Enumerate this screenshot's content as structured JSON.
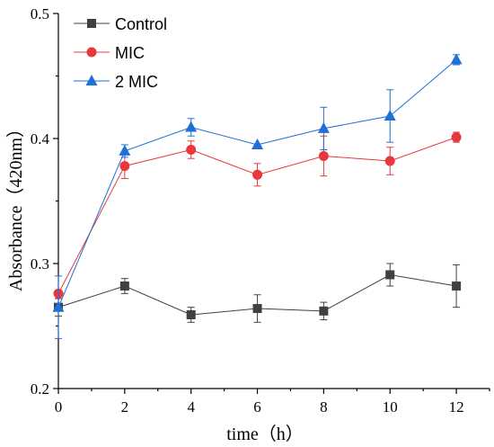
{
  "chart_data": {
    "type": "line",
    "xlabel": "time（h）",
    "ylabel": "Absorbance（420nm）",
    "xlim": [
      0,
      13
    ],
    "ylim": [
      0.2,
      0.5
    ],
    "xticks": [
      "0",
      "2",
      "4",
      "6",
      "8",
      "10",
      "12"
    ],
    "yticks": [
      "0.2",
      "0.3",
      "0.4",
      "0.5"
    ],
    "grid": false,
    "legend_position": "top-left",
    "x": [
      0,
      2,
      4,
      6,
      8,
      10,
      12
    ],
    "series": [
      {
        "name": "Control",
        "marker": "square",
        "color": "#404040",
        "values": [
          0.265,
          0.282,
          0.259,
          0.264,
          0.262,
          0.291,
          0.282
        ],
        "errors": [
          0.007,
          0.006,
          0.006,
          0.011,
          0.007,
          0.009,
          0.017
        ]
      },
      {
        "name": "MIC",
        "marker": "circle",
        "color": "#e8383d",
        "values": [
          0.276,
          0.378,
          0.391,
          0.371,
          0.386,
          0.382,
          0.401
        ],
        "errors": [
          0.0,
          0.01,
          0.007,
          0.009,
          0.016,
          0.011,
          0.004
        ]
      },
      {
        "name": "2 MIC",
        "marker": "triangle",
        "color": "#1f6fd6",
        "values": [
          0.265,
          0.39,
          0.409,
          0.395,
          0.408,
          0.418,
          0.463
        ],
        "errors": [
          0.025,
          0.005,
          0.007,
          0.0,
          0.017,
          0.021,
          0.004
        ]
      }
    ]
  }
}
